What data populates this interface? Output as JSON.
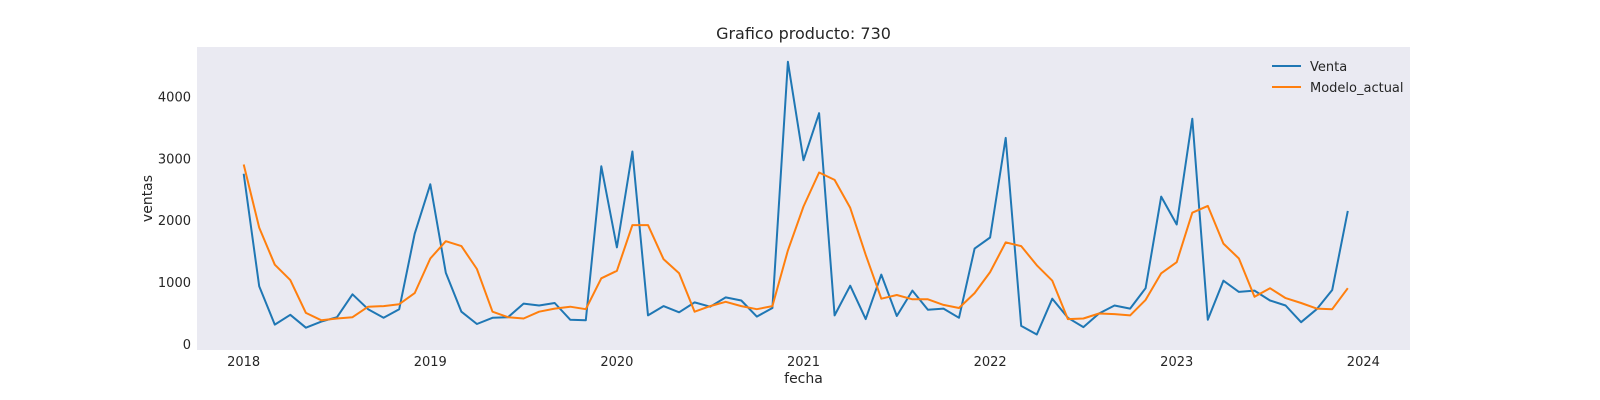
{
  "chart_data": {
    "type": "line",
    "title": "Grafico producto: 730",
    "xlabel": "fecha",
    "ylabel": "ventas",
    "x_start": "2018-01",
    "x_ticks": [
      "2018",
      "2019",
      "2020",
      "2021",
      "2022",
      "2023",
      "2024"
    ],
    "y_ticks": [
      0,
      1000,
      2000,
      3000,
      4000
    ],
    "ylim": [
      -100,
      4800
    ],
    "xlim": [
      "2017-10",
      "2024-04"
    ],
    "grid": false,
    "legend_position": "top-right",
    "background": "#eaeaf2",
    "series": [
      {
        "name": "Venta",
        "color": "#1f77b4",
        "values": [
          2750,
          930,
          310,
          470,
          260,
          360,
          430,
          800,
          560,
          420,
          560,
          1780,
          2580,
          1150,
          520,
          320,
          420,
          430,
          650,
          620,
          660,
          390,
          380,
          2870,
          1560,
          3110,
          460,
          610,
          510,
          670,
          600,
          750,
          700,
          440,
          580,
          4560,
          2970,
          3730,
          460,
          940,
          400,
          1120,
          450,
          860,
          550,
          570,
          420,
          1540,
          1720,
          3330,
          290,
          150,
          730,
          420,
          270,
          490,
          620,
          570,
          900,
          2380,
          1930,
          3640,
          390,
          1020,
          840,
          860,
          700,
          620,
          350,
          560,
          870,
          2150
        ]
      },
      {
        "name": "Modelo_actual",
        "color": "#ff7f0e",
        "values": [
          2900,
          1880,
          1280,
          1030,
          500,
          380,
          410,
          430,
          600,
          610,
          640,
          820,
          1380,
          1660,
          1580,
          1210,
          520,
          430,
          410,
          520,
          570,
          600,
          560,
          1060,
          1180,
          1920,
          1920,
          1370,
          1140,
          520,
          610,
          680,
          610,
          560,
          610,
          1510,
          2220,
          2770,
          2650,
          2200,
          1440,
          730,
          790,
          720,
          720,
          630,
          580,
          820,
          1160,
          1640,
          1580,
          1270,
          1020,
          400,
          410,
          490,
          480,
          460,
          710,
          1140,
          1320,
          2120,
          2230,
          1620,
          1380,
          760,
          900,
          740,
          660,
          570,
          560,
          900
        ]
      }
    ]
  }
}
